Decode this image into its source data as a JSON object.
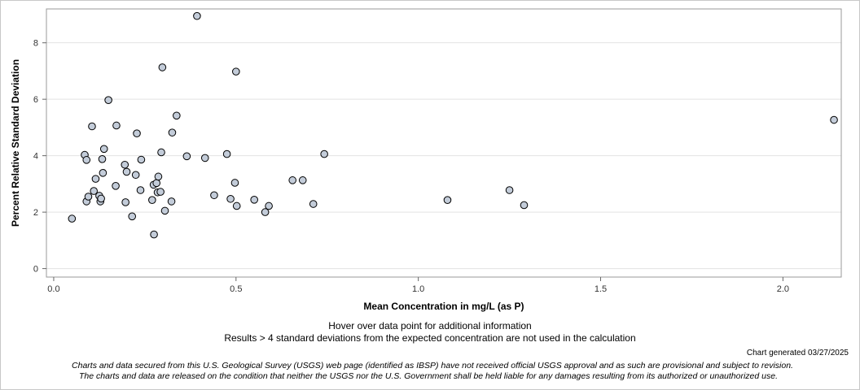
{
  "chart_data": {
    "type": "scatter",
    "title": "",
    "xlabel": "Mean Concentration in mg/L (as P)",
    "ylabel": "Percent Relative Standard Deviation",
    "xlim": [
      -0.02,
      2.16
    ],
    "ylim": [
      -0.3,
      9.2
    ],
    "xticks": [
      0.0,
      0.5,
      1.0,
      1.5,
      2.0
    ],
    "xtick_labels": [
      "0.0",
      "0.5",
      "1.0",
      "1.5",
      "2.0"
    ],
    "yticks": [
      0,
      2,
      4,
      6,
      8
    ],
    "ytick_labels": [
      "0",
      "2",
      "4",
      "6",
      "8"
    ],
    "grid": "horizontal",
    "marker_fill": "#c3ccd9",
    "marker_edge": "#000000",
    "points": [
      {
        "x": 0.05,
        "y": 1.77
      },
      {
        "x": 0.085,
        "y": 4.03
      },
      {
        "x": 0.09,
        "y": 3.85
      },
      {
        "x": 0.09,
        "y": 2.38
      },
      {
        "x": 0.095,
        "y": 2.55
      },
      {
        "x": 0.105,
        "y": 5.04
      },
      {
        "x": 0.11,
        "y": 2.75
      },
      {
        "x": 0.115,
        "y": 3.18
      },
      {
        "x": 0.125,
        "y": 2.58
      },
      {
        "x": 0.128,
        "y": 2.38
      },
      {
        "x": 0.13,
        "y": 2.48
      },
      {
        "x": 0.133,
        "y": 3.88
      },
      {
        "x": 0.135,
        "y": 3.39
      },
      {
        "x": 0.138,
        "y": 4.24
      },
      {
        "x": 0.15,
        "y": 5.97
      },
      {
        "x": 0.17,
        "y": 2.93
      },
      {
        "x": 0.172,
        "y": 5.07
      },
      {
        "x": 0.195,
        "y": 3.68
      },
      {
        "x": 0.197,
        "y": 2.35
      },
      {
        "x": 0.2,
        "y": 3.43
      },
      {
        "x": 0.215,
        "y": 1.85
      },
      {
        "x": 0.225,
        "y": 3.32
      },
      {
        "x": 0.228,
        "y": 4.79
      },
      {
        "x": 0.238,
        "y": 2.78
      },
      {
        "x": 0.24,
        "y": 3.86
      },
      {
        "x": 0.27,
        "y": 2.43
      },
      {
        "x": 0.274,
        "y": 2.97
      },
      {
        "x": 0.275,
        "y": 1.21
      },
      {
        "x": 0.282,
        "y": 3.03
      },
      {
        "x": 0.285,
        "y": 2.7
      },
      {
        "x": 0.287,
        "y": 3.26
      },
      {
        "x": 0.293,
        "y": 2.72
      },
      {
        "x": 0.295,
        "y": 4.12
      },
      {
        "x": 0.298,
        "y": 7.13
      },
      {
        "x": 0.305,
        "y": 2.05
      },
      {
        "x": 0.323,
        "y": 2.38
      },
      {
        "x": 0.325,
        "y": 4.82
      },
      {
        "x": 0.337,
        "y": 5.42
      },
      {
        "x": 0.365,
        "y": 3.98
      },
      {
        "x": 0.393,
        "y": 8.95
      },
      {
        "x": 0.415,
        "y": 3.92
      },
      {
        "x": 0.44,
        "y": 2.6
      },
      {
        "x": 0.475,
        "y": 4.06
      },
      {
        "x": 0.485,
        "y": 2.47
      },
      {
        "x": 0.497,
        "y": 3.04
      },
      {
        "x": 0.5,
        "y": 6.98
      },
      {
        "x": 0.502,
        "y": 2.22
      },
      {
        "x": 0.55,
        "y": 2.44
      },
      {
        "x": 0.58,
        "y": 2.0
      },
      {
        "x": 0.59,
        "y": 2.22
      },
      {
        "x": 0.655,
        "y": 3.13
      },
      {
        "x": 0.683,
        "y": 3.13
      },
      {
        "x": 0.712,
        "y": 2.29
      },
      {
        "x": 0.742,
        "y": 4.06
      },
      {
        "x": 1.08,
        "y": 2.43
      },
      {
        "x": 1.25,
        "y": 2.78
      },
      {
        "x": 1.29,
        "y": 2.25
      },
      {
        "x": 2.14,
        "y": 5.27
      }
    ]
  },
  "notes": {
    "hover": "Hover over data point for additional information",
    "results": "Results > 4 standard deviations from the expected concentration are not used in the calculation",
    "generated": "Chart generated 03/27/2025",
    "disclaimer1": "Charts and data secured from this U.S. Geological Survey (USGS) web page (identified as IBSP) have not received official USGS approval and as such are provisional and subject to revision.",
    "disclaimer2": "The charts and data are released on the condition that neither the USGS nor the U.S. Government shall be held liable for any damages resulting from its authorized or unauthorized use."
  }
}
